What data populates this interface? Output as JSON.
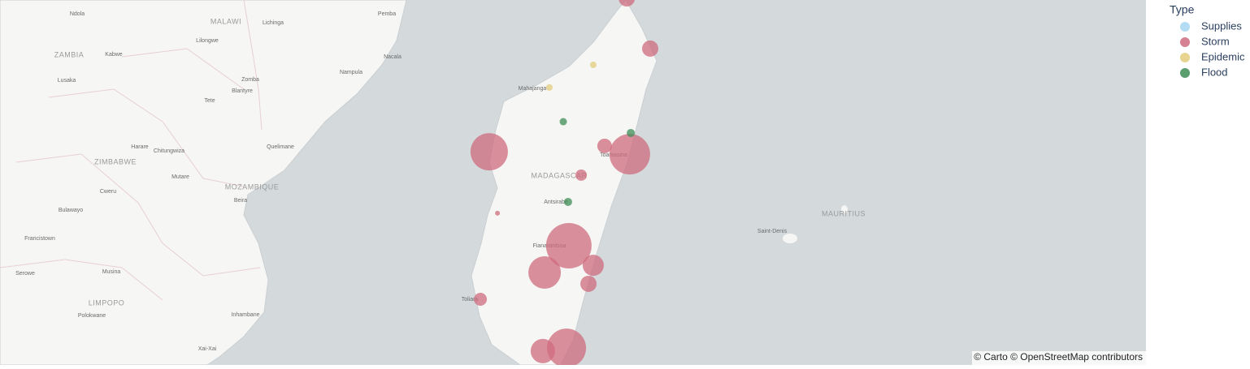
{
  "legend": {
    "title": "Type",
    "items": [
      {
        "name": "Supplies",
        "color": "#a6d6f2"
      },
      {
        "name": "Storm",
        "color": "#cf6b7e"
      },
      {
        "name": "Epidemic",
        "color": "#e3cc7c"
      },
      {
        "name": "Flood",
        "color": "#3d8c55"
      }
    ]
  },
  "points": [
    {
      "type": "Storm",
      "lon": 49.74,
      "lat": -12.41,
      "size": 20
    },
    {
      "type": "Storm",
      "lon": 50.67,
      "lat": -14.23,
      "size": 20
    },
    {
      "type": "Storm",
      "lon": 44.28,
      "lat": -17.97,
      "size": 46
    },
    {
      "type": "Storm",
      "lon": 48.86,
      "lat": -17.76,
      "size": 18
    },
    {
      "type": "Storm",
      "lon": 49.86,
      "lat": -18.06,
      "size": 50
    },
    {
      "type": "Storm",
      "lon": 47.93,
      "lat": -18.82,
      "size": 14
    },
    {
      "type": "Storm",
      "lon": 44.61,
      "lat": -20.2,
      "size": 6
    },
    {
      "type": "Storm",
      "lon": 47.44,
      "lat": -21.38,
      "size": 56
    },
    {
      "type": "Storm",
      "lon": 46.48,
      "lat": -22.35,
      "size": 40
    },
    {
      "type": "Storm",
      "lon": 48.41,
      "lat": -22.09,
      "size": 26
    },
    {
      "type": "Storm",
      "lon": 48.22,
      "lat": -22.76,
      "size": 20
    },
    {
      "type": "Storm",
      "lon": 43.93,
      "lat": -23.32,
      "size": 16
    },
    {
      "type": "Storm",
      "lon": 46.41,
      "lat": -25.2,
      "size": 30
    },
    {
      "type": "Storm",
      "lon": 47.35,
      "lat": -25.09,
      "size": 48
    },
    {
      "type": "Epidemic",
      "lon": 48.41,
      "lat": -14.82,
      "size": 8
    },
    {
      "type": "Epidemic",
      "lon": 46.67,
      "lat": -15.64,
      "size": 8
    },
    {
      "type": "Flood",
      "lon": 47.22,
      "lat": -16.88,
      "size": 9
    },
    {
      "type": "Flood",
      "lon": 49.9,
      "lat": -17.29,
      "size": 10
    },
    {
      "type": "Flood",
      "lon": 47.41,
      "lat": -19.79,
      "size": 10
    }
  ],
  "map_labels": [
    "Ndola",
    "MALAWI",
    "Lichinga",
    "Pemba",
    "ZAMBIA",
    "Kabwe",
    "Lilongwe",
    "Nacala",
    "Lusaka",
    "Zomba",
    "Nampula",
    "Mahajanga",
    "Blantyre",
    "Tete",
    "Harare",
    "Chitungwiza",
    "Quelimane",
    "Toamasina",
    "ZIMBABWE",
    "Mutare",
    "MADAGASCAR",
    "MOZAMBIQUE",
    "Antsirabe",
    "Cweru",
    "Beira",
    "MAURITIUS",
    "Saint-Denis",
    "Bulawayo",
    "Fianarantsoa",
    "Francistown",
    "Serowe",
    "Musina",
    "Toliara",
    "LIMPOPO",
    "Polokwane",
    "Inhambane",
    "Xai-Xai"
  ],
  "attribution": "© Carto © OpenStreetMap contributors"
}
